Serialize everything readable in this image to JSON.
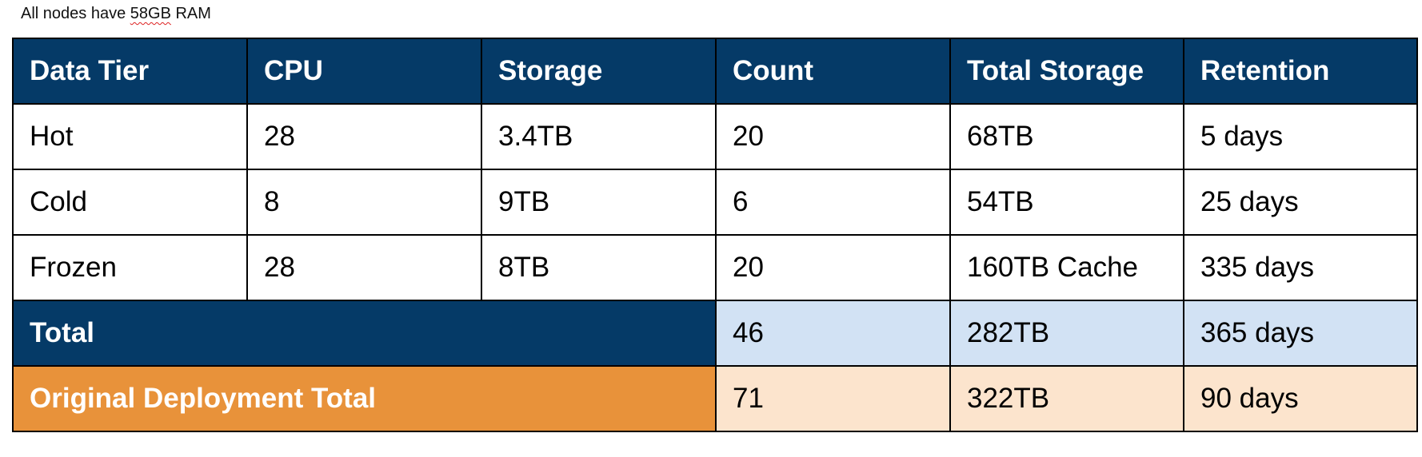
{
  "note": {
    "prefix": "All nodes have ",
    "flagged_word": "58GB",
    "suffix": " RAM"
  },
  "colors": {
    "header_bg": "#053a67",
    "total_label_bg": "#053a67",
    "total_value_bg": "#d2e2f4",
    "orig_label_bg": "#e8923a",
    "orig_value_bg": "#fce4cd"
  },
  "table": {
    "headers": [
      "Data Tier",
      "CPU",
      "Storage",
      "Count",
      "Total Storage",
      "Retention"
    ],
    "rows": [
      [
        "Hot",
        "28",
        "3.4TB",
        "20",
        "68TB",
        "5 days"
      ],
      [
        "Cold",
        "8",
        "9TB",
        "6",
        "54TB",
        "25 days"
      ],
      [
        "Frozen",
        "28",
        "8TB",
        "20",
        "160TB Cache",
        "335 days"
      ]
    ],
    "total": {
      "label": "Total",
      "count": "46",
      "total_storage": "282TB",
      "retention": "365 days"
    },
    "original": {
      "label": "Original Deployment Total",
      "count": "71",
      "total_storage": "322TB",
      "retention": "90 days"
    }
  }
}
